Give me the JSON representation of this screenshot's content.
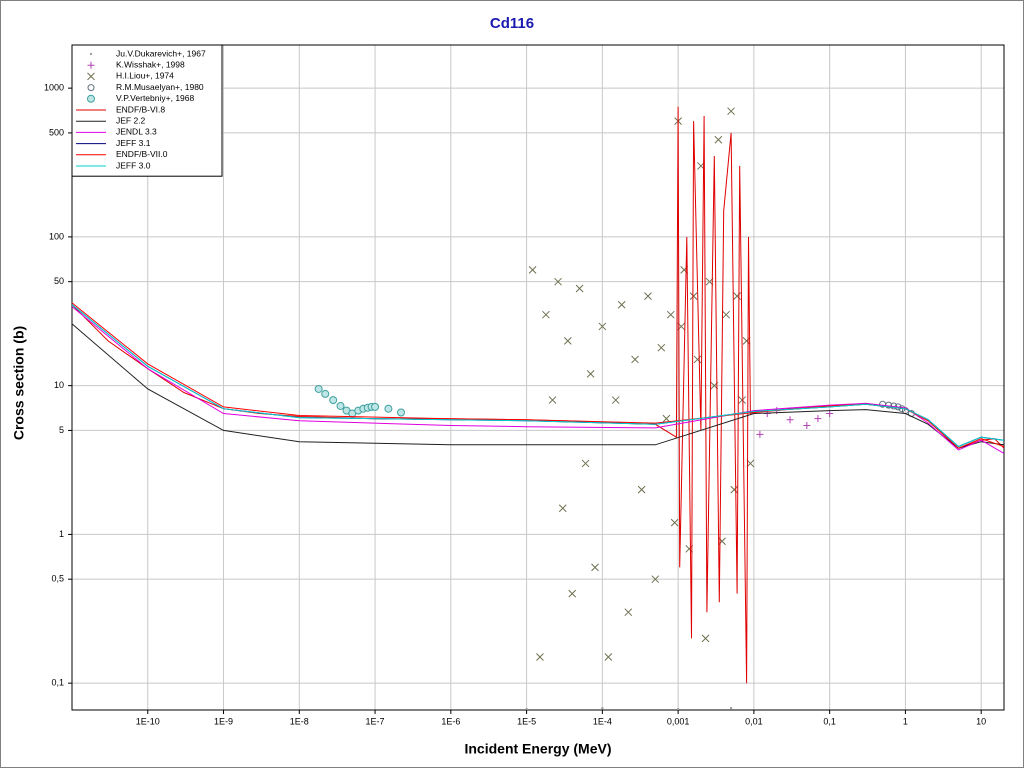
{
  "chart_data": {
    "type": "scatter",
    "title": "Cd116",
    "x_label": "Incident Energy (MeV)",
    "y_label": "Cross section (b)",
    "xscale": "log",
    "yscale": "log",
    "grid": true,
    "legend": "upper left",
    "xlim": [
      1e-11,
      20
    ],
    "ylim": [
      0.066,
      1950
    ],
    "xticks": [
      {
        "value": 1e-10,
        "label": "1E-10"
      },
      {
        "value": 1e-09,
        "label": "1E-9"
      },
      {
        "value": 1e-08,
        "label": "1E-8"
      },
      {
        "value": 1e-07,
        "label": "1E-7"
      },
      {
        "value": 1e-06,
        "label": "1E-6"
      },
      {
        "value": 1e-05,
        "label": "1E-5"
      },
      {
        "value": 0.0001,
        "label": "1E-4"
      },
      {
        "value": 0.001,
        "label": "0,001"
      },
      {
        "value": 0.01,
        "label": "0,01"
      },
      {
        "value": 0.1,
        "label": "0,1"
      },
      1,
      10
    ],
    "yticks": [
      {
        "value": 0.1,
        "label": "0,1"
      },
      {
        "value": 0.5,
        "label": "0,5"
      },
      1,
      5,
      10,
      50,
      100,
      500,
      1000
    ],
    "series": [
      {
        "name": "Ju.V.Dukarevich+, 1967",
        "color": "#a0a0a0",
        "marker": "dot",
        "x": [
          1e-05,
          0.0001,
          0.001,
          0.005
        ],
        "values": [
          0.067,
          0.068,
          0.067,
          0.068
        ]
      },
      {
        "name": "K.Wisshak+, 1998",
        "color": "#b040b0",
        "marker": "plus",
        "x": [
          0.012,
          0.015,
          0.02,
          0.03,
          0.05,
          0.07,
          0.1
        ],
        "values": [
          4.7,
          6.5,
          6.8,
          5.9,
          5.4,
          6.0,
          6.5
        ]
      },
      {
        "name": "H.I.Liou+, 1974",
        "color": "#707050",
        "marker": "x",
        "x": [
          1.2e-05,
          1.5e-05,
          1.8e-05,
          2.2e-05,
          2.6e-05,
          3e-05,
          3.5e-05,
          4e-05,
          5e-05,
          6e-05,
          7e-05,
          8e-05,
          0.0001,
          0.00012,
          0.00015,
          0.00018,
          0.00022,
          0.00027,
          0.00033,
          0.0004,
          0.0005,
          0.0006,
          0.0007,
          0.0008,
          0.0009,
          0.001,
          0.0011,
          0.0012,
          0.0014,
          0.0016,
          0.0018,
          0.002,
          0.0023,
          0.0026,
          0.003,
          0.0034,
          0.0038,
          0.0043,
          0.005,
          0.0055,
          0.006,
          0.007,
          0.008,
          0.009
        ],
        "values": [
          60,
          0.15,
          30,
          8,
          50,
          1.5,
          20,
          0.4,
          45,
          3,
          12,
          0.6,
          25,
          0.15,
          8,
          35,
          0.3,
          15,
          2,
          40,
          0.5,
          18,
          6,
          30,
          1.2,
          600,
          25,
          60,
          0.8,
          40,
          15,
          300,
          0.2,
          50,
          10,
          450,
          0.9,
          30,
          700,
          2,
          40,
          8,
          20,
          3
        ]
      },
      {
        "name": "R.M.Musaelyan+, 1980",
        "color": "#607080",
        "marker": "hex",
        "x": [
          0.5,
          0.6,
          0.7,
          0.8,
          0.9,
          1.0,
          1.2
        ],
        "values": [
          7.5,
          7.4,
          7.3,
          7.2,
          7.0,
          6.8,
          6.5
        ]
      },
      {
        "name": "V.P.Vertebniy+, 1968",
        "color": "#40a0a0",
        "marker": "circle",
        "x": [
          1.8e-08,
          2.2e-08,
          2.8e-08,
          3.5e-08,
          4.2e-08,
          5e-08,
          6e-08,
          7e-08,
          8e-08,
          9e-08,
          1e-07,
          1.5e-07,
          2.2e-07
        ],
        "values": [
          9.5,
          8.8,
          8.0,
          7.3,
          6.8,
          6.5,
          6.8,
          7.0,
          7.1,
          7.2,
          7.2,
          7.0,
          6.6
        ]
      },
      {
        "name": "ENDF/B-VI.8",
        "color": "#e00000",
        "marker": "line",
        "x": [
          1e-11,
          3e-11,
          1e-10,
          3e-10,
          1e-09,
          3e-09,
          1e-08,
          1e-07,
          1e-06,
          1e-05,
          2.7e-05,
          3e-05,
          0.0005,
          0.00095,
          0.001,
          0.00105,
          0.0013,
          0.0015,
          0.0016,
          0.002,
          0.0022,
          0.0024,
          0.003,
          0.0035,
          0.004,
          0.005,
          0.006,
          0.0065,
          0.008,
          0.0085,
          0.009,
          0.01,
          0.03,
          0.1,
          0.3,
          1,
          2,
          5,
          10,
          15,
          20
        ],
        "values": [
          35,
          20,
          13,
          9,
          7,
          6.5,
          6.2,
          6.0,
          6.0,
          5.9,
          5.8,
          5.8,
          5.5,
          4.5,
          750,
          0.6,
          100,
          0.2,
          600,
          5,
          650,
          0.3,
          350,
          0.35,
          150,
          500,
          0.4,
          300,
          0.1,
          100,
          6.5,
          6.6,
          7.0,
          7.3,
          7.6,
          7.0,
          5.8,
          3.8,
          4.3,
          4.4,
          3.8
        ]
      },
      {
        "name": "JEF 2.2",
        "color": "#202020",
        "marker": "line",
        "x": [
          1e-11,
          1e-10,
          1e-09,
          1e-08,
          1e-06,
          1e-05,
          0.0005,
          0.01,
          0.1,
          0.3,
          1,
          2,
          5,
          10,
          20
        ],
        "values": [
          26,
          9.5,
          5.0,
          4.2,
          4.0,
          4.0,
          4.0,
          6.5,
          6.8,
          6.9,
          6.5,
          5.5,
          3.8,
          4.2,
          4.0
        ]
      },
      {
        "name": "JENDL 3.3",
        "color": "#e000e0",
        "marker": "line",
        "x": [
          1e-11,
          1e-10,
          1e-09,
          1e-08,
          1e-06,
          1e-05,
          0.0005,
          0.01,
          0.1,
          0.3,
          1,
          2,
          5,
          10,
          20
        ],
        "values": [
          34,
          13,
          6.5,
          5.8,
          5.4,
          5.3,
          5.2,
          6.8,
          7.4,
          7.6,
          7.1,
          5.6,
          3.7,
          4.3,
          3.5
        ]
      },
      {
        "name": "JEFF 3.1",
        "color": "#000080",
        "marker": "line",
        "x": [
          1e-11,
          1e-10,
          1e-09,
          1e-08,
          1e-06,
          1e-05,
          0.0005,
          0.01,
          0.1,
          0.3,
          1,
          2,
          5,
          10,
          20
        ],
        "values": [
          35,
          13.5,
          7,
          6.1,
          5.9,
          5.8,
          5.5,
          6.7,
          7.2,
          7.5,
          7.0,
          5.9,
          3.9,
          4.5,
          4.3
        ]
      },
      {
        "name": "ENDF/B-VII.0",
        "color": "#ff0000",
        "marker": "line",
        "x": [
          1e-11,
          1e-10,
          1e-09,
          1e-08,
          1e-06,
          1e-05,
          0.0005,
          0.01,
          0.1,
          0.3,
          1,
          2,
          5,
          10,
          20
        ],
        "values": [
          36,
          14,
          7.2,
          6.3,
          6.0,
          5.9,
          5.6,
          6.6,
          7.3,
          7.5,
          7.0,
          5.8,
          3.8,
          4.4,
          3.9
        ]
      },
      {
        "name": "JEFF 3.0",
        "color": "#00d0d0",
        "marker": "line",
        "x": [
          1e-11,
          1e-10,
          1e-09,
          1e-08,
          1e-06,
          1e-05,
          0.0005,
          0.01,
          0.1,
          0.3,
          1,
          2,
          5,
          10,
          20
        ],
        "values": [
          35,
          13.5,
          7,
          6.1,
          5.9,
          5.8,
          5.5,
          6.7,
          7.2,
          7.5,
          7.0,
          5.9,
          3.9,
          4.5,
          4.3
        ]
      }
    ]
  }
}
